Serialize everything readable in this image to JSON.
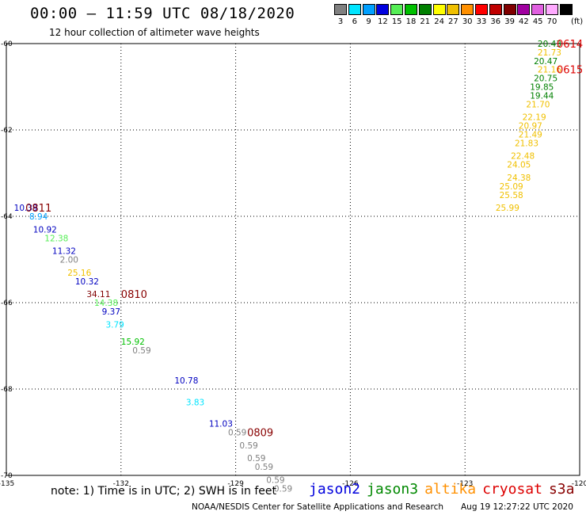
{
  "header": {
    "title": "00:00 – 11:59 UTC 08/18/2020",
    "subtitle": "12 hour collection of altimeter wave heights"
  },
  "legend": {
    "unit": "(ft)",
    "swatches": [
      {
        "label": "3",
        "color": "#808080"
      },
      {
        "label": "6",
        "color": "#00e5ff"
      },
      {
        "label": "9",
        "color": "#00a0ff"
      },
      {
        "label": "12",
        "color": "#0000e0"
      },
      {
        "label": "15",
        "color": "#55ee55"
      },
      {
        "label": "18",
        "color": "#00c000"
      },
      {
        "label": "21",
        "color": "#008000"
      },
      {
        "label": "24",
        "color": "#ffff00"
      },
      {
        "label": "27",
        "color": "#f0c000"
      },
      {
        "label": "30",
        "color": "#ff9000"
      },
      {
        "label": "33",
        "color": "#ff0000"
      },
      {
        "label": "36",
        "color": "#c00000"
      },
      {
        "label": "39",
        "color": "#800000"
      },
      {
        "label": "42",
        "color": "#a000a0"
      },
      {
        "label": "45",
        "color": "#e060e0"
      },
      {
        "label": "70",
        "color": "#ffaaff"
      },
      {
        "label": "",
        "color": "#000000"
      }
    ]
  },
  "chart_data": {
    "type": "scatter",
    "x_axis": {
      "ticks": [
        -135,
        -132,
        -129,
        -126,
        -123,
        -120
      ]
    },
    "y_axis": {
      "ticks": [
        -60,
        -62,
        -64,
        -66,
        -68,
        -70
      ]
    },
    "grid": true,
    "passes": [
      {
        "label": "0614",
        "color": "#dd0000",
        "x": -120.6,
        "y": -60.0
      },
      {
        "label": "0615",
        "color": "#dd0000",
        "x": -120.6,
        "y": -60.6
      },
      {
        "label": "0811",
        "color": "#880000",
        "x": -134.5,
        "y": -63.8
      },
      {
        "label": "0810",
        "color": "#880000",
        "x": -132.0,
        "y": -65.8
      },
      {
        "label": "0809",
        "color": "#880000",
        "x": -128.7,
        "y": -69.0
      }
    ],
    "points": [
      {
        "x": -121.1,
        "y": -60.0,
        "v": "20.43",
        "c": "#008000"
      },
      {
        "x": -121.1,
        "y": -60.2,
        "v": "21.73",
        "c": "#f0c000"
      },
      {
        "x": -121.2,
        "y": -60.4,
        "v": "20.47",
        "c": "#008000"
      },
      {
        "x": -121.1,
        "y": -60.6,
        "v": "21.16",
        "c": "#f0c000"
      },
      {
        "x": -121.2,
        "y": -60.8,
        "v": "20.75",
        "c": "#008000"
      },
      {
        "x": -121.3,
        "y": -61.0,
        "v": "19.85",
        "c": "#008000"
      },
      {
        "x": -121.3,
        "y": -61.2,
        "v": "19.44",
        "c": "#008000"
      },
      {
        "x": -121.4,
        "y": -61.4,
        "v": "21.70",
        "c": "#f0c000"
      },
      {
        "x": -121.5,
        "y": -61.7,
        "v": "22.19",
        "c": "#f0c000"
      },
      {
        "x": -121.6,
        "y": -61.9,
        "v": "20.97",
        "c": "#f0c000"
      },
      {
        "x": -121.6,
        "y": -62.1,
        "v": "21.49",
        "c": "#f0c000"
      },
      {
        "x": -121.7,
        "y": -62.3,
        "v": "21.83",
        "c": "#f0c000"
      },
      {
        "x": -121.8,
        "y": -62.6,
        "v": "22.48",
        "c": "#f0c000"
      },
      {
        "x": -121.9,
        "y": -62.8,
        "v": "24.05",
        "c": "#f0c000"
      },
      {
        "x": -121.9,
        "y": -63.1,
        "v": "24.38",
        "c": "#f0c000"
      },
      {
        "x": -122.1,
        "y": -63.3,
        "v": "25.09",
        "c": "#f0c000"
      },
      {
        "x": -122.1,
        "y": -63.5,
        "v": "25.58",
        "c": "#f0c000"
      },
      {
        "x": -122.2,
        "y": -63.8,
        "v": "25.99",
        "c": "#f0c000"
      },
      {
        "x": -134.8,
        "y": -63.8,
        "v": "10.39",
        "c": "#0000c0"
      },
      {
        "x": -134.4,
        "y": -64.0,
        "v": "8.94",
        "c": "#00a0ff"
      },
      {
        "x": -134.3,
        "y": -64.3,
        "v": "10.92",
        "c": "#0000c0"
      },
      {
        "x": -134.0,
        "y": -64.5,
        "v": "12.38",
        "c": "#55ee55"
      },
      {
        "x": -133.8,
        "y": -64.8,
        "v": "11.32",
        "c": "#0000c0"
      },
      {
        "x": -133.6,
        "y": -65.0,
        "v": "2.00",
        "c": "#808080"
      },
      {
        "x": -133.4,
        "y": -65.3,
        "v": "25.16",
        "c": "#f0c000"
      },
      {
        "x": -133.2,
        "y": -65.5,
        "v": "10.32",
        "c": "#0000c0"
      },
      {
        "x": -132.9,
        "y": -65.8,
        "v": "34.11",
        "c": "#800000"
      },
      {
        "x": -132.7,
        "y": -66.0,
        "v": "14.38",
        "c": "#55ee55"
      },
      {
        "x": -132.5,
        "y": -66.2,
        "v": "9.37",
        "c": "#0000c0"
      },
      {
        "x": -132.4,
        "y": -66.5,
        "v": "3.79",
        "c": "#00e5ff"
      },
      {
        "x": -132.0,
        "y": -66.9,
        "v": "15.92",
        "c": "#00c000"
      },
      {
        "x": -131.7,
        "y": -67.1,
        "v": "0.59",
        "c": "#808080"
      },
      {
        "x": -130.6,
        "y": -67.8,
        "v": "10.78",
        "c": "#0000c0"
      },
      {
        "x": -130.3,
        "y": -68.3,
        "v": "3.83",
        "c": "#00e5ff"
      },
      {
        "x": -129.7,
        "y": -68.8,
        "v": "11.03",
        "c": "#0000c0"
      },
      {
        "x": -129.2,
        "y": -69.0,
        "v": "0.59",
        "c": "#808080"
      },
      {
        "x": -128.9,
        "y": -69.3,
        "v": "0.59",
        "c": "#808080"
      },
      {
        "x": -128.7,
        "y": -69.6,
        "v": "0.59",
        "c": "#808080"
      },
      {
        "x": -128.5,
        "y": -69.8,
        "v": "0.59",
        "c": "#808080"
      },
      {
        "x": -128.2,
        "y": -70.1,
        "v": "0.59",
        "c": "#808080"
      },
      {
        "x": -128.0,
        "y": -70.3,
        "v": "0.59",
        "c": "#808080"
      }
    ]
  },
  "footer": {
    "note": "note:  1) Time is in UTC;  2) SWH is in feet",
    "missions": [
      {
        "name": "jason2",
        "color": "#0000dd"
      },
      {
        "name": "jason3",
        "color": "#008800"
      },
      {
        "name": "altika",
        "color": "#ff9000"
      },
      {
        "name": "cryosat",
        "color": "#dd0000"
      },
      {
        "name": "s3a",
        "color": "#880000"
      }
    ],
    "credit": "NOAA/NESDIS Center for Satellite Applications and Research",
    "timestamp": "Aug 19 12:27:22 UTC 2020"
  }
}
